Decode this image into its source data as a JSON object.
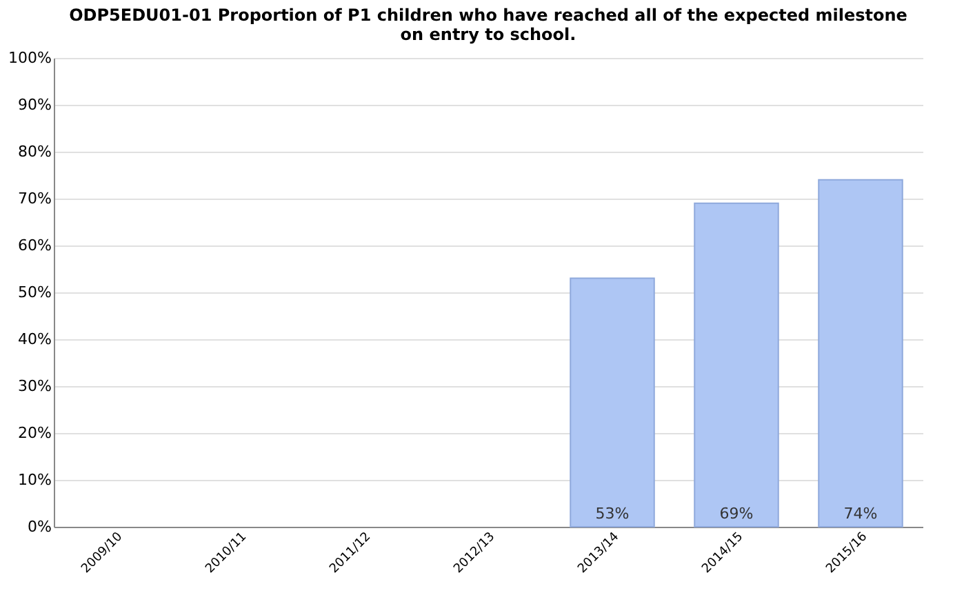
{
  "chart_data": {
    "type": "bar",
    "title": [
      "ODP5EDU01-01 Proportion of P1 children who have reached all of the expected milestone",
      "on entry to school."
    ],
    "categories": [
      "2009/10",
      "2010/11",
      "2011/12",
      "2012/13",
      "2013/14",
      "2014/15",
      "2015/16"
    ],
    "values": [
      null,
      null,
      null,
      null,
      53,
      69,
      74
    ],
    "value_labels": [
      null,
      null,
      null,
      null,
      "53%",
      "69%",
      "74%"
    ],
    "color": "#aec6f4",
    "ylim": [
      0,
      100
    ],
    "yticks": [
      {
        "value": 0,
        "label": "0%"
      },
      {
        "value": 10,
        "label": "10%"
      },
      {
        "value": 20,
        "label": "20%"
      },
      {
        "value": 30,
        "label": "30%"
      },
      {
        "value": 40,
        "label": "40%"
      },
      {
        "value": 50,
        "label": "50%"
      },
      {
        "value": 60,
        "label": "60%"
      },
      {
        "value": 70,
        "label": "70%"
      },
      {
        "value": 80,
        "label": "80%"
      },
      {
        "value": 90,
        "label": "90%"
      },
      {
        "value": 100,
        "label": "100%"
      }
    ],
    "grid": "y"
  }
}
